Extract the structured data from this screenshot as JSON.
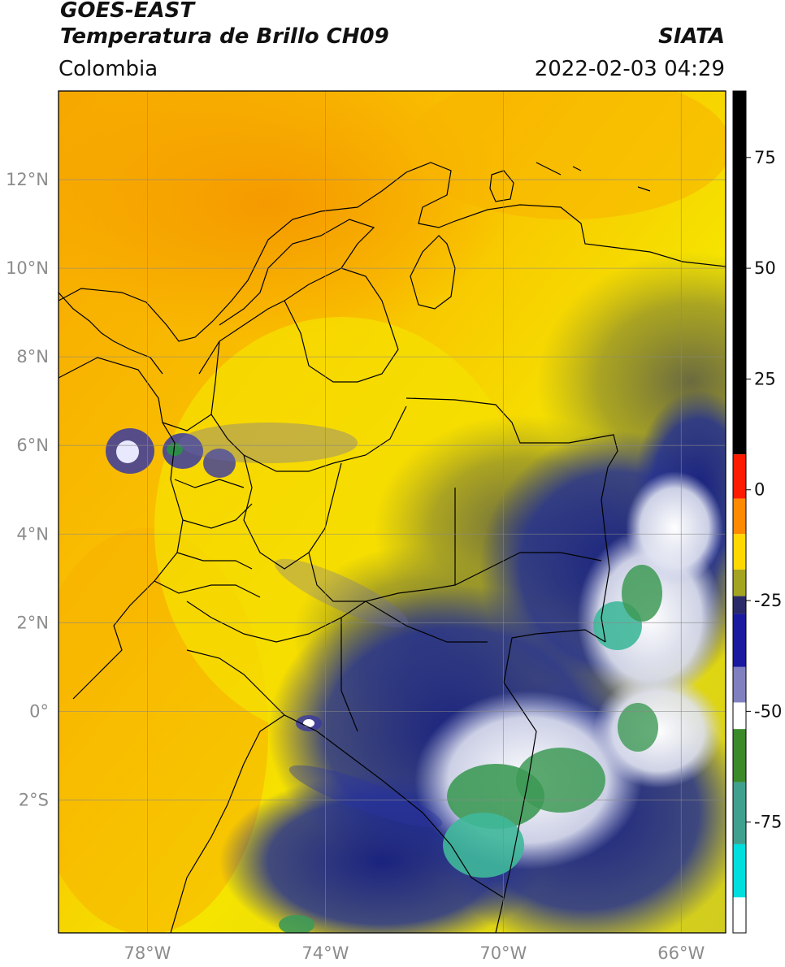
{
  "header": {
    "satellite": "GOES-EAST",
    "product": "Temperatura de Brillo CH09",
    "region": "Colombia",
    "brand": "SIATA",
    "datetime": "2022-02-03 04:29"
  },
  "map": {
    "lon_range": [
      -80,
      -65
    ],
    "lat_range": [
      -5,
      14
    ],
    "lon_ticks": [
      -78,
      -74,
      -70,
      -66
    ],
    "lat_ticks": [
      12,
      10,
      8,
      6,
      4,
      2,
      0,
      -2
    ],
    "lon_tick_labels": [
      "78°W",
      "74°W",
      "70°W",
      "66°W"
    ],
    "lat_tick_labels": [
      "12°N",
      "10°N",
      "8°N",
      "6°N",
      "4°N",
      "2°N",
      "0°",
      "2°S"
    ],
    "gridlines": true,
    "colors": {
      "warm_orange": "#f7a700",
      "orange_light": "#f9b800",
      "yellow": "#f5e400",
      "olive": "#9c9a2a",
      "navy": "#1a2a8a",
      "white_cloud": "#e8eaf2",
      "green_cloud": "#3e9a56",
      "teal_cloud": "#3fb89a",
      "border": "#000000"
    }
  },
  "colorbar": {
    "range": [
      -100,
      90
    ],
    "ticks": [
      75,
      50,
      25,
      0,
      -25,
      -50,
      -75
    ],
    "tick_labels": [
      "75",
      "50",
      "25",
      "0",
      "-25",
      "-50",
      "-75"
    ],
    "segments": [
      {
        "from": 90,
        "to": 8,
        "color": "#000000"
      },
      {
        "from": 8,
        "to": -2,
        "color": "#ff1a00"
      },
      {
        "from": -2,
        "to": -10,
        "color": "#ff8a00"
      },
      {
        "from": -10,
        "to": -18,
        "color": "#ffd800"
      },
      {
        "from": -18,
        "to": -24,
        "color": "#a4a420"
      },
      {
        "from": -24,
        "to": -28,
        "color": "#2a2a6a"
      },
      {
        "from": -28,
        "to": -40,
        "color": "#1a1aa0"
      },
      {
        "from": -40,
        "to": -48,
        "color": "#8080c0"
      },
      {
        "from": -48,
        "to": -54,
        "color": "#ffffff"
      },
      {
        "from": -54,
        "to": -66,
        "color": "#3a8a2a"
      },
      {
        "from": -66,
        "to": -80,
        "color": "#3fa090"
      },
      {
        "from": -80,
        "to": -92,
        "color": "#00dede"
      },
      {
        "from": -92,
        "to": -100,
        "color": "#ffffff"
      }
    ]
  }
}
